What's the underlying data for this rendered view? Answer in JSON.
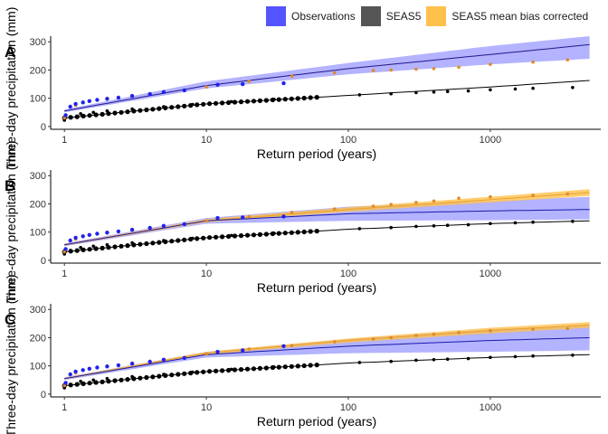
{
  "legend": {
    "items": [
      {
        "name": "Observations",
        "color": "#5555FF"
      },
      {
        "name": "SEAS5",
        "color": "#555555"
      },
      {
        "name": "SEAS5 mean bias corrected",
        "color": "#FFC04C"
      }
    ]
  },
  "colors": {
    "observations": "#5555FF",
    "observations_band": "#9999FF",
    "seas5": "#000000",
    "bias_corrected_points": "#E08A2C",
    "bias_corrected_band": "#FFC04C",
    "bias_corrected_line": "#E8A030"
  },
  "chart_data": [
    {
      "panel": "A",
      "type": "scatter",
      "xlabel": "Return period (years)",
      "ylabel": "Three-day precipitation (mm)",
      "xscale": "log",
      "xticks": [
        1,
        10,
        100,
        1000
      ],
      "xtick_labels": [
        "1",
        "10",
        "100",
        "1000"
      ],
      "yticks": [
        0,
        100,
        200,
        300
      ],
      "ylim": [
        -10,
        320
      ],
      "xlim": [
        0.8,
        6000
      ],
      "fit_lines": {
        "observations": {
          "x": [
            1,
            10,
            100,
            1000,
            5000
          ],
          "y": [
            55,
            145,
            205,
            255,
            290
          ],
          "lower": [
            50,
            135,
            185,
            220,
            240
          ],
          "upper": [
            60,
            160,
            225,
            285,
            320
          ]
        },
        "seas5": {
          "x": [
            1,
            10,
            100,
            1000,
            5000
          ],
          "y": [
            30,
            80,
            110,
            140,
            163
          ]
        },
        "bias_corrected": {
          "x": [
            1,
            10,
            100,
            1000,
            5000
          ],
          "y": [
            55,
            145,
            205,
            255,
            290
          ]
        }
      },
      "observation_points": {
        "x": [
          1.02,
          1.1,
          1.2,
          1.35,
          1.5,
          1.7,
          2,
          2.4,
          3,
          4,
          5,
          7,
          12,
          18,
          35
        ],
        "y": [
          40,
          70,
          80,
          85,
          90,
          94,
          98,
          102,
          108,
          115,
          122,
          128,
          148,
          150,
          153
        ]
      },
      "bias_corrected_points": {
        "x": [
          1,
          1.2,
          1.5,
          2,
          3,
          5,
          10,
          20,
          40,
          80,
          150,
          200,
          300,
          400,
          600,
          1000,
          2000,
          3500
        ],
        "y": [
          30,
          75,
          90,
          100,
          110,
          122,
          140,
          160,
          178,
          190,
          198,
          200,
          203,
          205,
          210,
          220,
          228,
          236
        ]
      },
      "seas5_points": {
        "x": [
          1,
          1.1,
          1.3,
          1.6,
          2,
          3,
          5,
          8,
          15,
          30,
          60,
          120,
          200,
          300,
          400,
          500,
          700,
          1000,
          1500,
          2000,
          3800
        ],
        "y": [
          22,
          35,
          45,
          50,
          55,
          62,
          70,
          78,
          88,
          96,
          104,
          112,
          116,
          120,
          122,
          124,
          126,
          130,
          133,
          135,
          138
        ]
      }
    },
    {
      "panel": "B",
      "type": "scatter",
      "xlabel": "Return period (years)",
      "ylabel": "Three-day precipitation (mm)",
      "xscale": "log",
      "xticks": [
        1,
        10,
        100,
        1000
      ],
      "xtick_labels": [
        "1",
        "10",
        "100",
        "1000"
      ],
      "yticks": [
        0,
        100,
        200,
        300
      ],
      "ylim": [
        -10,
        320
      ],
      "xlim": [
        0.8,
        6000
      ],
      "fit_lines": {
        "observations": {
          "x": [
            1,
            10,
            100,
            1000,
            5000
          ],
          "y": [
            55,
            140,
            165,
            175,
            180
          ],
          "lower": [
            50,
            130,
            140,
            142,
            145
          ],
          "upper": [
            60,
            150,
            190,
            210,
            225
          ]
        },
        "seas5": {
          "x": [
            1,
            10,
            100,
            1000,
            5000
          ],
          "y": [
            30,
            80,
            110,
            130,
            140
          ]
        },
        "bias_corrected": {
          "x": [
            1,
            10,
            100,
            1000,
            5000
          ],
          "y": [
            55,
            140,
            180,
            215,
            240
          ],
          "lower": [
            52,
            135,
            172,
            205,
            228
          ],
          "upper": [
            58,
            146,
            188,
            225,
            252
          ]
        }
      },
      "observation_points": {
        "x": [
          1.02,
          1.1,
          1.2,
          1.35,
          1.5,
          1.7,
          2,
          2.4,
          3,
          4,
          5,
          7,
          12,
          18,
          35
        ],
        "y": [
          40,
          70,
          80,
          85,
          90,
          94,
          98,
          102,
          108,
          115,
          122,
          128,
          150,
          152,
          155
        ]
      },
      "bias_corrected_points": {
        "x": [
          1,
          1.2,
          1.5,
          2,
          3,
          5,
          10,
          20,
          40,
          80,
          150,
          200,
          300,
          400,
          600,
          1000,
          2000,
          3500
        ],
        "y": [
          30,
          75,
          90,
          100,
          110,
          122,
          140,
          155,
          170,
          182,
          192,
          198,
          205,
          210,
          220,
          225,
          230,
          235
        ]
      },
      "seas5_points": {
        "x": [
          1,
          1.1,
          1.3,
          1.6,
          2,
          3,
          5,
          8,
          15,
          30,
          60,
          120,
          200,
          300,
          400,
          500,
          700,
          1000,
          1500,
          2000,
          3800
        ],
        "y": [
          22,
          35,
          45,
          50,
          55,
          62,
          70,
          78,
          88,
          96,
          104,
          112,
          116,
          120,
          122,
          124,
          126,
          130,
          133,
          135,
          138
        ]
      }
    },
    {
      "panel": "C",
      "type": "scatter",
      "xlabel": "Return period (years)",
      "ylabel": "Three-day precipitation (mm)",
      "xscale": "log",
      "xticks": [
        1,
        10,
        100,
        1000
      ],
      "xtick_labels": [
        "1",
        "10",
        "100",
        "1000"
      ],
      "yticks": [
        0,
        100,
        200,
        300
      ],
      "ylim": [
        -10,
        320
      ],
      "xlim": [
        0.8,
        6000
      ],
      "fit_lines": {
        "observations": {
          "x": [
            1,
            10,
            100,
            1000,
            5000
          ],
          "y": [
            55,
            140,
            170,
            190,
            200
          ],
          "lower": [
            50,
            130,
            145,
            150,
            155
          ],
          "upper": [
            60,
            150,
            195,
            230,
            245
          ]
        },
        "seas5": {
          "x": [
            1,
            10,
            100,
            1000,
            5000
          ],
          "y": [
            30,
            80,
            110,
            130,
            140
          ]
        },
        "bias_corrected": {
          "x": [
            1,
            10,
            100,
            1000,
            5000
          ],
          "y": [
            55,
            145,
            190,
            225,
            245
          ],
          "lower": [
            52,
            140,
            183,
            215,
            235
          ],
          "upper": [
            58,
            150,
            197,
            235,
            255
          ]
        }
      },
      "observation_points": {
        "x": [
          1.02,
          1.1,
          1.2,
          1.35,
          1.5,
          1.7,
          2,
          2.4,
          3,
          4,
          5,
          7,
          12,
          18,
          35
        ],
        "y": [
          40,
          70,
          80,
          85,
          90,
          94,
          98,
          102,
          108,
          115,
          122,
          128,
          150,
          155,
          170
        ]
      },
      "bias_corrected_points": {
        "x": [
          1,
          1.2,
          1.5,
          2,
          3,
          5,
          10,
          20,
          40,
          80,
          150,
          200,
          300,
          400,
          600,
          1000,
          2000,
          3500
        ],
        "y": [
          30,
          75,
          90,
          100,
          110,
          122,
          142,
          160,
          172,
          185,
          195,
          200,
          208,
          212,
          218,
          225,
          230,
          232
        ]
      },
      "seas5_points": {
        "x": [
          1,
          1.1,
          1.3,
          1.6,
          2,
          3,
          5,
          8,
          15,
          30,
          60,
          120,
          200,
          300,
          400,
          500,
          700,
          1000,
          1500,
          2000,
          3800
        ],
        "y": [
          22,
          35,
          45,
          50,
          55,
          62,
          70,
          78,
          88,
          96,
          104,
          112,
          116,
          120,
          122,
          124,
          126,
          130,
          133,
          135,
          138
        ]
      }
    }
  ]
}
